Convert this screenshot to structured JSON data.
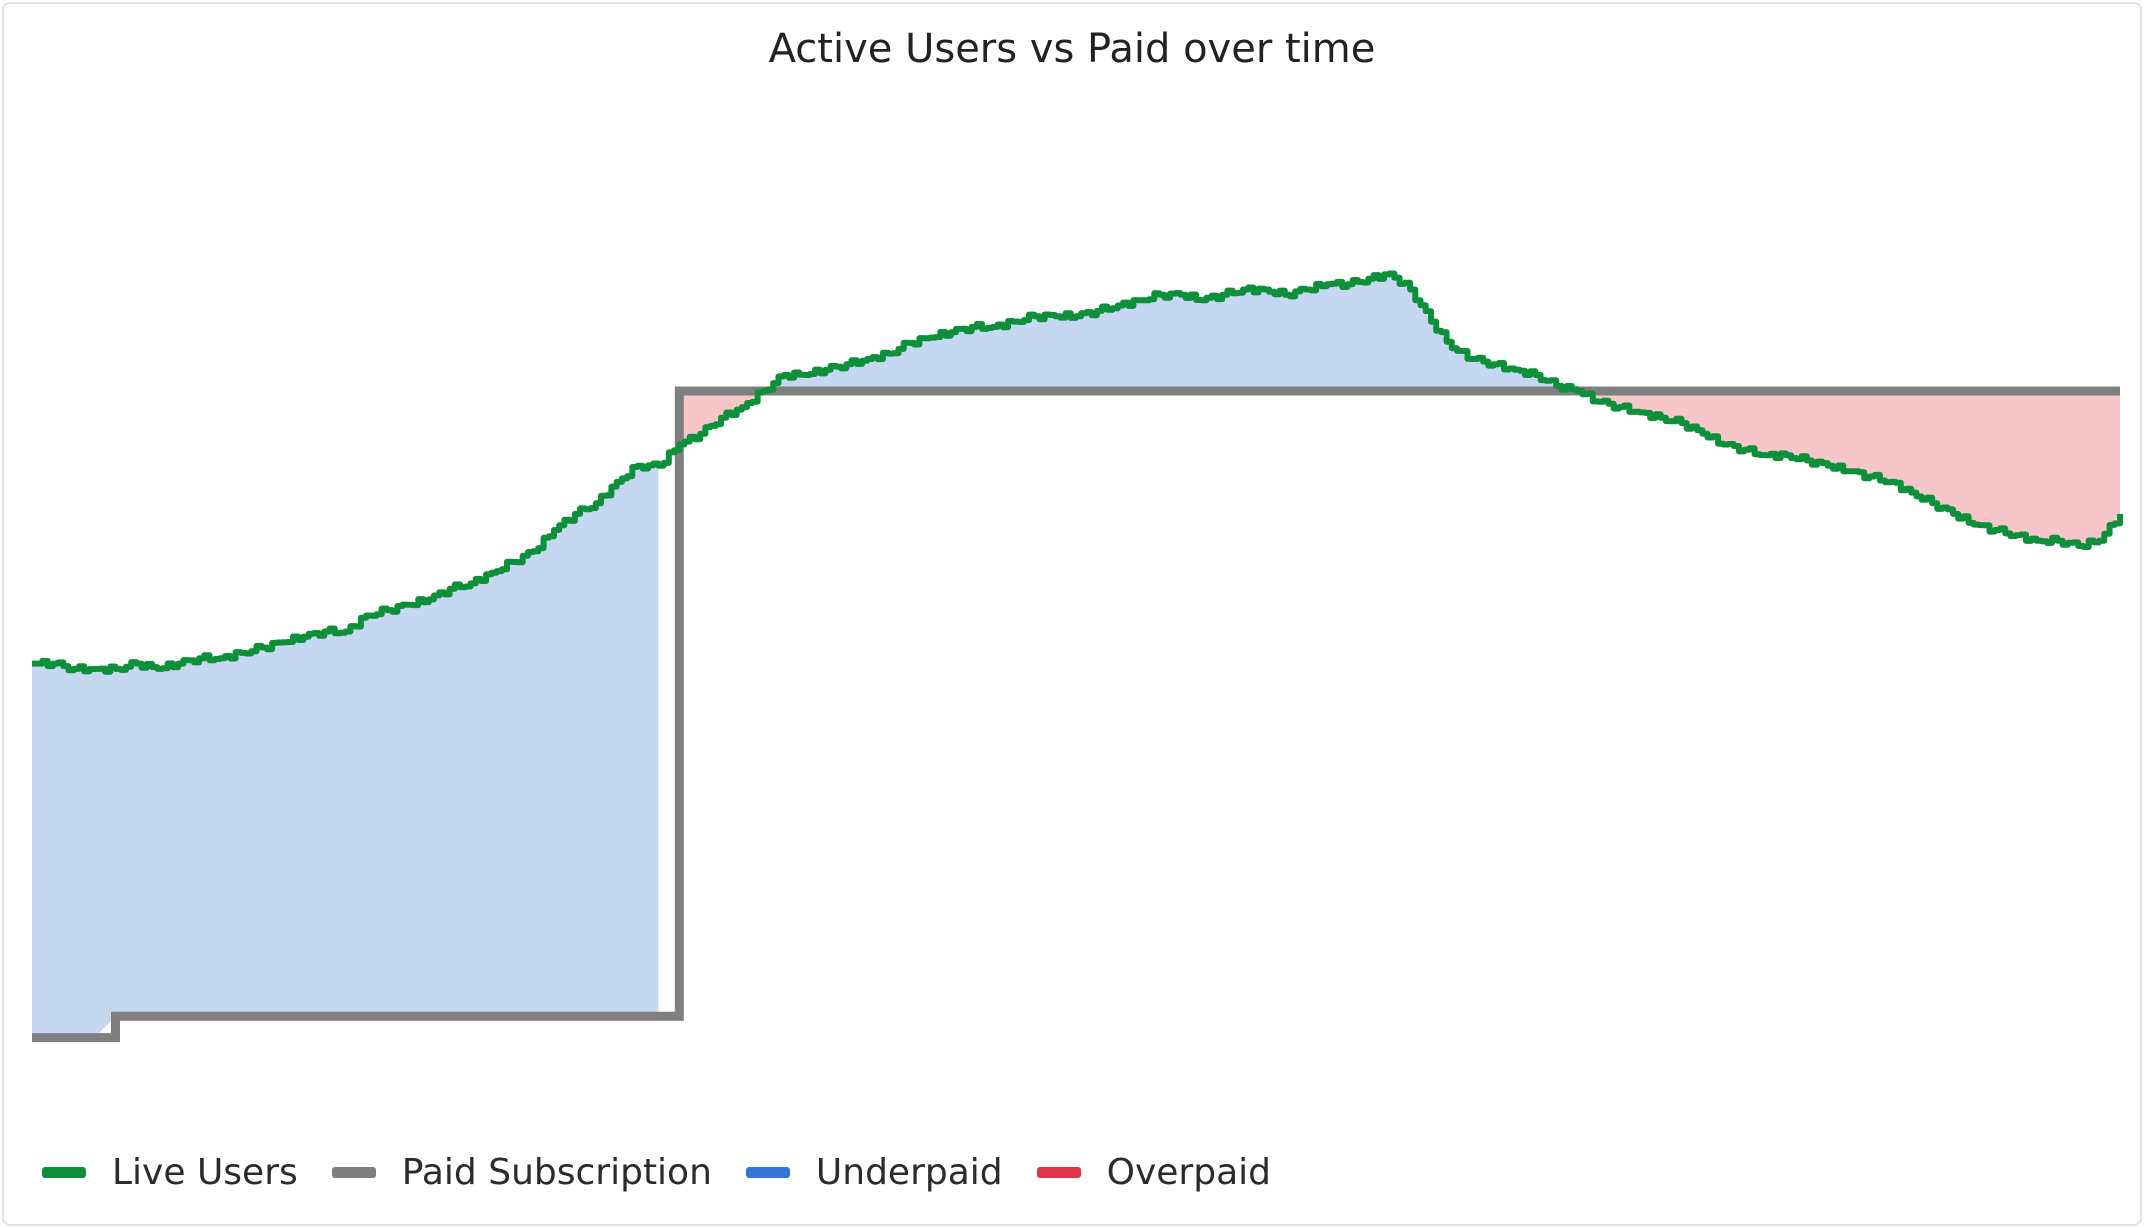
{
  "chart_data": {
    "type": "line",
    "title": "Active Users vs Paid over time",
    "xlabel": "",
    "ylabel": "",
    "grid": false,
    "legend_position": "bottom-left",
    "x_axis_labels_shown": false,
    "y_axis_labels_shown": false,
    "x": [
      0,
      1,
      2,
      3,
      4,
      5,
      6,
      7,
      8,
      9,
      10,
      11,
      12,
      13,
      14,
      15,
      16,
      17,
      18,
      19,
      20,
      21,
      22,
      23,
      24,
      25,
      26,
      27,
      28,
      29,
      30,
      31,
      32,
      33,
      34,
      35,
      36,
      37,
      38,
      39,
      40,
      41,
      42,
      43,
      44,
      45,
      46,
      47,
      48,
      49,
      50,
      51,
      52,
      53,
      54,
      55,
      56,
      57,
      58,
      59,
      60,
      61,
      62,
      63,
      64,
      65,
      66,
      67,
      68,
      69,
      70,
      71,
      72,
      73,
      74,
      75,
      76,
      77,
      78,
      79,
      80,
      81,
      82,
      83,
      84,
      85,
      86,
      87,
      88,
      89,
      90,
      91,
      92,
      93,
      94,
      95,
      96,
      97,
      98,
      99,
      100
    ],
    "series": [
      {
        "name": "Live Users",
        "color": "#0e8f3a",
        "values": [
          74,
          74,
          73,
          73,
          73,
          74,
          73,
          74,
          75,
          75,
          76,
          77,
          78,
          79,
          80,
          80,
          83,
          84,
          85,
          86,
          88,
          89,
          91,
          93,
          95,
          99,
          102,
          104,
          108,
          111,
          111,
          115,
          117,
          120,
          122,
          125,
          128,
          128,
          129,
          130,
          131,
          132,
          134,
          135,
          136,
          137,
          137,
          138,
          139,
          139,
          139,
          140,
          141,
          142,
          143,
          143,
          142,
          143,
          144,
          144,
          143,
          144,
          145,
          145,
          146,
          147,
          144,
          138,
          133,
          131,
          130,
          129,
          128,
          126,
          125,
          123,
          122,
          121,
          120,
          119,
          117,
          115,
          114,
          113,
          113,
          112,
          111,
          110,
          109,
          108,
          106,
          104,
          102,
          100,
          99,
          98,
          97,
          97,
          96,
          97,
          102
        ]
      },
      {
        "name": "Paid Subscription",
        "color": "#7f7f7f",
        "values": [
          4,
          4,
          4,
          4,
          8,
          8,
          8,
          8,
          8,
          8,
          8,
          8,
          8,
          8,
          8,
          8,
          8,
          8,
          8,
          8,
          8,
          8,
          8,
          8,
          8,
          8,
          8,
          8,
          8,
          8,
          8,
          125,
          125,
          125,
          125,
          125,
          125,
          125,
          125,
          125,
          125,
          125,
          125,
          125,
          125,
          125,
          125,
          125,
          125,
          125,
          125,
          125,
          125,
          125,
          125,
          125,
          125,
          125,
          125,
          125,
          125,
          125,
          125,
          125,
          125,
          125,
          125,
          125,
          125,
          125,
          125,
          125,
          125,
          125,
          125,
          125,
          125,
          125,
          125,
          125,
          125,
          125,
          125,
          125,
          125,
          125,
          125,
          125,
          125,
          125,
          125,
          125,
          125,
          125,
          125,
          125,
          125,
          125,
          125,
          125,
          125
        ]
      }
    ],
    "areas": [
      {
        "name": "Underpaid",
        "color": "#3477db",
        "fill": "#c6d7f1"
      },
      {
        "name": "Overpaid",
        "color": "#dc3545",
        "fill": "#f7c6c9"
      }
    ],
    "xlim": [
      0,
      100
    ],
    "ylim": [
      0,
      160
    ]
  },
  "legend": {
    "items": [
      {
        "label": "Live Users",
        "color": "#0e8f3a"
      },
      {
        "label": "Paid Subscription",
        "color": "#7f7f7f"
      },
      {
        "label": "Underpaid",
        "color": "#3477db"
      },
      {
        "label": "Overpaid",
        "color": "#dc3545"
      }
    ]
  }
}
